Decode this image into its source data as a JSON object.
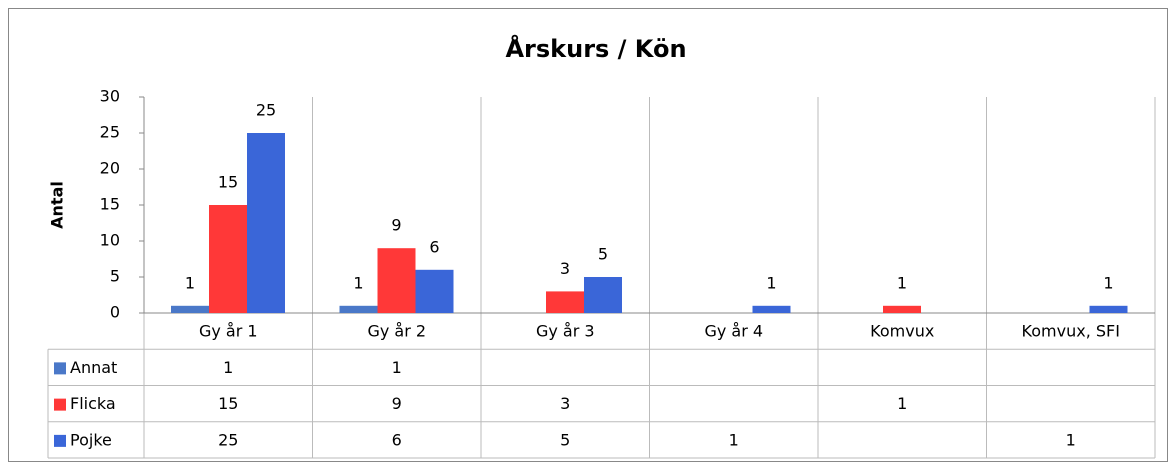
{
  "chart_data": {
    "type": "bar",
    "title": "Årskurs / Kön",
    "y_label": "Antal",
    "categories": [
      "Gy år 1",
      "Gy år 2",
      "Gy år 3",
      "Gy år 4",
      "Komvux",
      "Komvux, SFI"
    ],
    "series": [
      {
        "name": "Annat",
        "color": "#4a78c8",
        "values": [
          1,
          1,
          null,
          null,
          null,
          null
        ]
      },
      {
        "name": "Flicka",
        "color": "#ff3838",
        "values": [
          15,
          9,
          3,
          null,
          1,
          null
        ]
      },
      {
        "name": "Pojke",
        "color": "#3a66d8",
        "values": [
          25,
          6,
          5,
          1,
          null,
          1
        ]
      }
    ],
    "ylim": [
      0,
      30
    ],
    "yticks": [
      0,
      5,
      10,
      15,
      20,
      25,
      30
    ],
    "data_table": true
  }
}
